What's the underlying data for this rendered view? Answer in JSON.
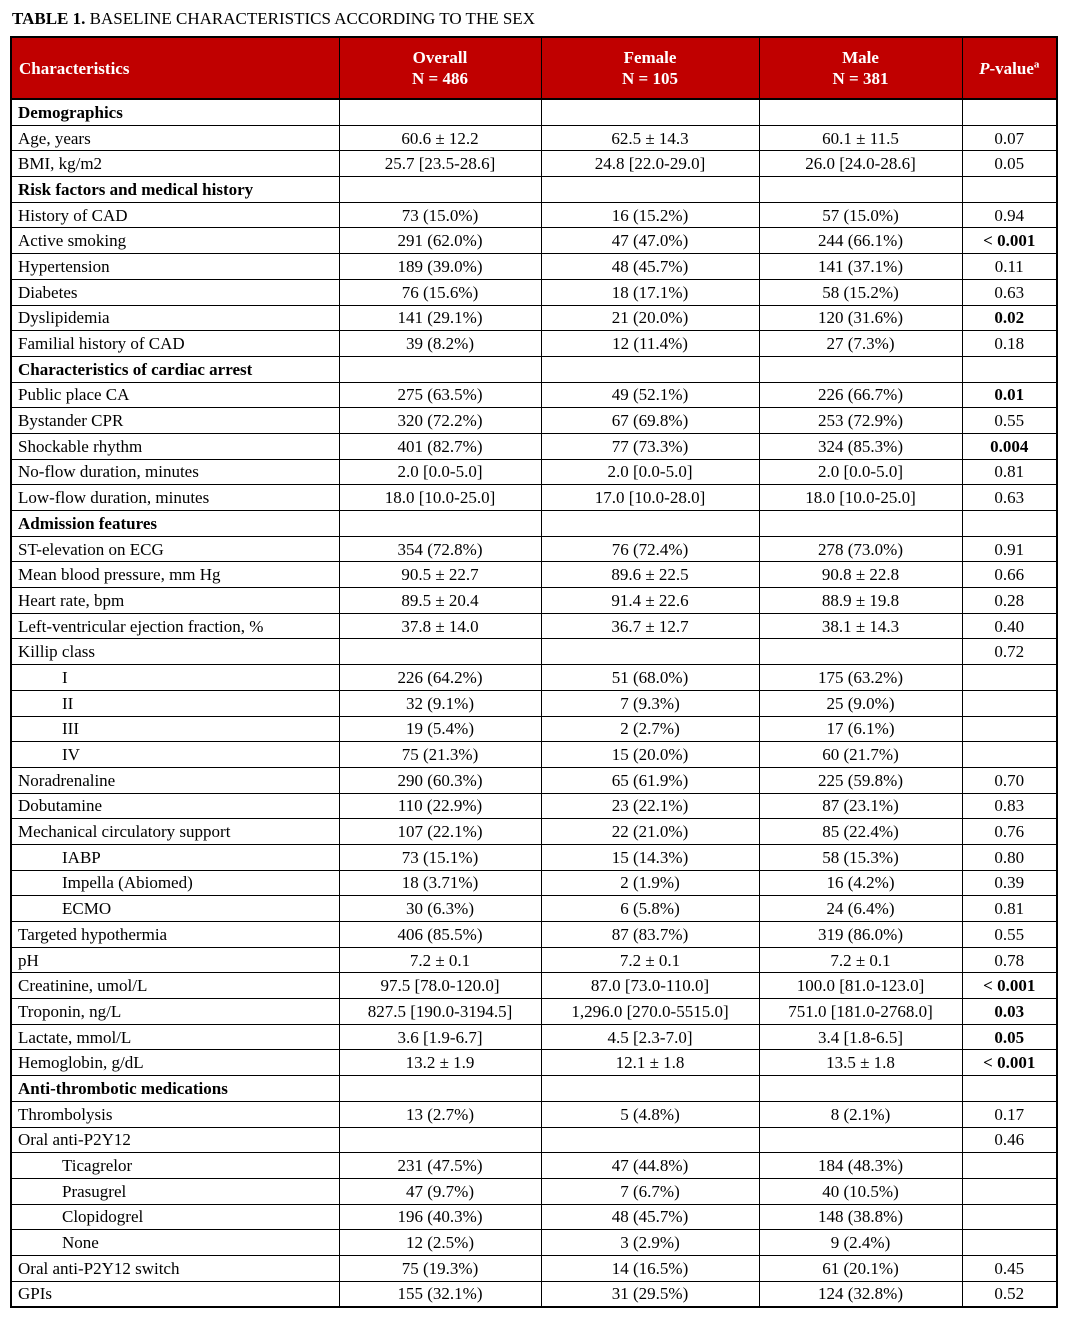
{
  "title": {
    "label": "TABLE 1.",
    "text": "BASELINE CHARACTERISTICS ACCORDING TO THE SEX"
  },
  "colors": {
    "header_bg": "#C00000",
    "header_text": "#FFFFFF",
    "border": "#000000"
  },
  "table": {
    "header": {
      "characteristics": "Characteristics",
      "overall": {
        "label": "Overall",
        "n": "N = 486"
      },
      "female": {
        "label": "Female",
        "n": "N = 105"
      },
      "male": {
        "label": "Male",
        "n": "N = 381"
      },
      "pvalue": {
        "p": "P",
        "rest": "-value",
        "sup": "a"
      }
    },
    "rows": [
      {
        "type": "section",
        "label": "Demographics",
        "overall": "",
        "female": "",
        "male": "",
        "p": ""
      },
      {
        "type": "data",
        "label": "Age, years",
        "overall": "60.6 ± 12.2",
        "female": "62.5 ± 14.3",
        "male": "60.1 ± 11.5",
        "p": "0.07"
      },
      {
        "type": "data",
        "label": "BMI, kg/m2",
        "overall": "25.7 [23.5-28.6]",
        "female": "24.8 [22.0-29.0]",
        "male": "26.0 [24.0-28.6]",
        "p": "0.05"
      },
      {
        "type": "section",
        "label": "Risk factors and medical history",
        "overall": "",
        "female": "",
        "male": "",
        "p": ""
      },
      {
        "type": "data",
        "label": "History of CAD",
        "overall": "73 (15.0%)",
        "female": "16 (15.2%)",
        "male": "57 (15.0%)",
        "p": "0.94"
      },
      {
        "type": "data",
        "label": "Active smoking",
        "overall": "291 (62.0%)",
        "female": "47 (47.0%)",
        "male": "244 (66.1%)",
        "p": "< 0.001",
        "p_bold": true
      },
      {
        "type": "data",
        "label": "Hypertension",
        "overall": "189 (39.0%)",
        "female": "48 (45.7%)",
        "male": "141 (37.1%)",
        "p": "0.11"
      },
      {
        "type": "data",
        "label": "Diabetes",
        "overall": "76 (15.6%)",
        "female": "18 (17.1%)",
        "male": "58 (15.2%)",
        "p": "0.63"
      },
      {
        "type": "data",
        "label": "Dyslipidemia",
        "overall": "141 (29.1%)",
        "female": "21 (20.0%)",
        "male": "120 (31.6%)",
        "p": "0.02",
        "p_bold": true
      },
      {
        "type": "data",
        "label": "Familial history of CAD",
        "overall": "39 (8.2%)",
        "female": "12 (11.4%)",
        "male": "27 (7.3%)",
        "p": "0.18"
      },
      {
        "type": "section",
        "label": "Characteristics of cardiac arrest",
        "overall": "",
        "female": "",
        "male": "",
        "p": ""
      },
      {
        "type": "data",
        "label": "Public place CA",
        "overall": "275 (63.5%)",
        "female": "49 (52.1%)",
        "male": "226 (66.7%)",
        "p": "0.01",
        "p_bold": true
      },
      {
        "type": "data",
        "label": "Bystander CPR",
        "overall": "320 (72.2%)",
        "female": "67 (69.8%)",
        "male": "253 (72.9%)",
        "p": "0.55"
      },
      {
        "type": "data",
        "label": "Shockable rhythm",
        "overall": "401 (82.7%)",
        "female": "77 (73.3%)",
        "male": "324 (85.3%)",
        "p": "0.004",
        "p_bold": true
      },
      {
        "type": "data",
        "label": "No-flow duration, minutes",
        "overall": "2.0 [0.0-5.0]",
        "female": "2.0 [0.0-5.0]",
        "male": "2.0 [0.0-5.0]",
        "p": "0.81"
      },
      {
        "type": "data",
        "label": "Low-flow duration, minutes",
        "overall": "18.0 [10.0-25.0]",
        "female": "17.0 [10.0-28.0]",
        "male": "18.0 [10.0-25.0]",
        "p": "0.63"
      },
      {
        "type": "section",
        "label": "Admission features",
        "overall": "",
        "female": "",
        "male": "",
        "p": ""
      },
      {
        "type": "data",
        "label": "ST-elevation on ECG",
        "overall": "354 (72.8%)",
        "female": "76 (72.4%)",
        "male": "278 (73.0%)",
        "p": "0.91"
      },
      {
        "type": "data",
        "label": "Mean blood pressure, mm Hg",
        "overall": "90.5 ± 22.7",
        "female": "89.6 ± 22.5",
        "male": "90.8 ± 22.8",
        "p": "0.66"
      },
      {
        "type": "data",
        "label": "Heart rate, bpm",
        "overall": "89.5 ± 20.4",
        "female": "91.4 ± 22.6",
        "male": "88.9 ± 19.8",
        "p": "0.28"
      },
      {
        "type": "data",
        "label": "Left-ventricular ejection fraction, %",
        "overall": "37.8 ± 14.0",
        "female": "36.7 ± 12.7",
        "male": "38.1 ± 14.3",
        "p": "0.40"
      },
      {
        "type": "data",
        "label": "Killip class",
        "overall": "",
        "female": "",
        "male": "",
        "p": "0.72"
      },
      {
        "type": "sub",
        "label": "I",
        "overall": "226 (64.2%)",
        "female": "51 (68.0%)",
        "male": "175 (63.2%)",
        "p": ""
      },
      {
        "type": "sub",
        "label": "II",
        "overall": "32 (9.1%)",
        "female": "7 (9.3%)",
        "male": "25 (9.0%)",
        "p": ""
      },
      {
        "type": "sub",
        "label": "III",
        "overall": "19 (5.4%)",
        "female": "2 (2.7%)",
        "male": "17 (6.1%)",
        "p": ""
      },
      {
        "type": "sub",
        "label": "IV",
        "overall": "75 (21.3%)",
        "female": "15 (20.0%)",
        "male": "60 (21.7%)",
        "p": ""
      },
      {
        "type": "data",
        "label": "Noradrenaline",
        "overall": "290 (60.3%)",
        "female": "65 (61.9%)",
        "male": "225 (59.8%)",
        "p": "0.70"
      },
      {
        "type": "data",
        "label": "Dobutamine",
        "overall": "110 (22.9%)",
        "female": "23 (22.1%)",
        "male": "87 (23.1%)",
        "p": "0.83"
      },
      {
        "type": "data",
        "label": "Mechanical circulatory support",
        "overall": "107 (22.1%)",
        "female": "22 (21.0%)",
        "male": "85 (22.4%)",
        "p": "0.76"
      },
      {
        "type": "sub",
        "label": "IABP",
        "overall": "73 (15.1%)",
        "female": "15 (14.3%)",
        "male": "58 (15.3%)",
        "p": "0.80"
      },
      {
        "type": "sub",
        "label": "Impella (Abiomed)",
        "overall": "18 (3.71%)",
        "female": "2 (1.9%)",
        "male": "16 (4.2%)",
        "p": "0.39"
      },
      {
        "type": "sub",
        "label": "ECMO",
        "overall": "30 (6.3%)",
        "female": "6 (5.8%)",
        "male": "24 (6.4%)",
        "p": "0.81"
      },
      {
        "type": "data",
        "label": "Targeted hypothermia",
        "overall": "406 (85.5%)",
        "female": "87 (83.7%)",
        "male": "319 (86.0%)",
        "p": "0.55"
      },
      {
        "type": "data",
        "label": "pH",
        "overall": "7.2 ± 0.1",
        "female": "7.2 ± 0.1",
        "male": "7.2 ± 0.1",
        "p": "0.78"
      },
      {
        "type": "data",
        "label": "Creatinine, umol/L",
        "overall": "97.5 [78.0-120.0]",
        "female": "87.0 [73.0-110.0]",
        "male": "100.0 [81.0-123.0]",
        "p": "< 0.001",
        "p_bold": true
      },
      {
        "type": "data",
        "label": "Troponin, ng/L",
        "overall": "827.5 [190.0-3194.5]",
        "female": "1,296.0 [270.0-5515.0]",
        "male": "751.0 [181.0-2768.0]",
        "p": "0.03",
        "p_bold": true
      },
      {
        "type": "data",
        "label": "Lactate, mmol/L",
        "overall": "3.6 [1.9-6.7]",
        "female": "4.5 [2.3-7.0]",
        "male": "3.4 [1.8-6.5]",
        "p": "0.05",
        "p_bold": true
      },
      {
        "type": "data",
        "label": "Hemoglobin, g/dL",
        "overall": "13.2 ± 1.9",
        "female": "12.1 ± 1.8",
        "male": "13.5 ± 1.8",
        "p": "< 0.001",
        "p_bold": true
      },
      {
        "type": "section",
        "label": "Anti-thrombotic medications",
        "overall": "",
        "female": "",
        "male": "",
        "p": ""
      },
      {
        "type": "data",
        "label": "Thrombolysis",
        "overall": "13 (2.7%)",
        "female": "5 (4.8%)",
        "male": "8 (2.1%)",
        "p": "0.17"
      },
      {
        "type": "data",
        "label": "Oral anti-P2Y12",
        "overall": "",
        "female": "",
        "male": "",
        "p": "0.46"
      },
      {
        "type": "sub",
        "label": "Ticagrelor",
        "overall": "231 (47.5%)",
        "female": "47 (44.8%)",
        "male": "184 (48.3%)",
        "p": ""
      },
      {
        "type": "sub",
        "label": "Prasugrel",
        "overall": "47 (9.7%)",
        "female": "7 (6.7%)",
        "male": "40 (10.5%)",
        "p": ""
      },
      {
        "type": "sub",
        "label": "Clopidogrel",
        "overall": "196 (40.3%)",
        "female": "48 (45.7%)",
        "male": "148 (38.8%)",
        "p": ""
      },
      {
        "type": "sub",
        "label": "None",
        "overall": "12 (2.5%)",
        "female": "3 (2.9%)",
        "male": "9 (2.4%)",
        "p": ""
      },
      {
        "type": "data",
        "label": "Oral anti-P2Y12 switch",
        "overall": "75 (19.3%)",
        "female": "14 (16.5%)",
        "male": "61 (20.1%)",
        "p": "0.45"
      },
      {
        "type": "data",
        "label": "GPIs",
        "overall": "155 (32.1%)",
        "female": "31 (29.5%)",
        "male": "124 (32.8%)",
        "p": "0.52"
      }
    ]
  }
}
